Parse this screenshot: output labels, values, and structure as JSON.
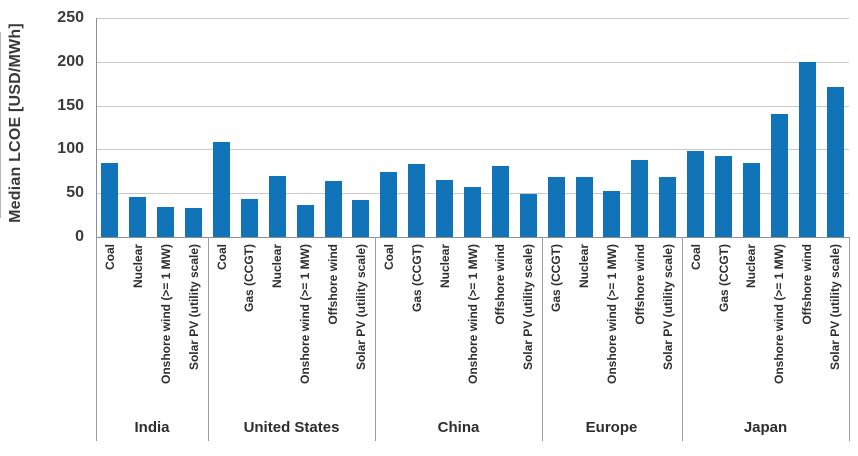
{
  "chart_data": {
    "type": "bar",
    "title": "",
    "ylabel": "Median LCOE [USD/MWh]",
    "xlabel": "",
    "ylim": [
      0,
      250
    ],
    "yticks": [
      0,
      50,
      100,
      150,
      200,
      250
    ],
    "grid": true,
    "legend_position": "none",
    "colors": {
      "bar": "#1173b8",
      "gridline": "#c9c9c9",
      "axis": "#8f8f8f",
      "divider": "#9e9e9e",
      "text": "#3a3a3a"
    },
    "groups": [
      {
        "label": "India",
        "bars": [
          {
            "category": "Coal",
            "value": 85
          },
          {
            "category": "Nuclear",
            "value": 46
          },
          {
            "category": "Onshore wind (>= 1 MW)",
            "value": 34
          },
          {
            "category": "Solar PV (utility scale)",
            "value": 33
          }
        ]
      },
      {
        "label": "United States",
        "bars": [
          {
            "category": "Coal",
            "value": 108
          },
          {
            "category": "Gas (CCGT)",
            "value": 43
          },
          {
            "category": "Nuclear",
            "value": 70
          },
          {
            "category": "Onshore wind (>= 1 MW)",
            "value": 37
          },
          {
            "category": "Offshore wind",
            "value": 64
          },
          {
            "category": "Solar PV (utility scale)",
            "value": 42
          }
        ]
      },
      {
        "label": "China",
        "bars": [
          {
            "category": "Coal",
            "value": 74
          },
          {
            "category": "Gas (CCGT)",
            "value": 83
          },
          {
            "category": "Nuclear",
            "value": 65
          },
          {
            "category": "Onshore wind (>= 1 MW)",
            "value": 57
          },
          {
            "category": "Offshore wind",
            "value": 81
          },
          {
            "category": "Solar PV (utility scale)",
            "value": 49
          }
        ]
      },
      {
        "label": "Europe",
        "bars": [
          {
            "category": "Gas (CCGT)",
            "value": 69
          },
          {
            "category": "Nuclear",
            "value": 69
          },
          {
            "category": "Onshore wind (>= 1 MW)",
            "value": 52
          },
          {
            "category": "Offshore wind",
            "value": 88
          },
          {
            "category": "Solar PV (utility scale)",
            "value": 68
          }
        ]
      },
      {
        "label": "Japan",
        "bars": [
          {
            "category": "Coal",
            "value": 98
          },
          {
            "category": "Gas (CCGT)",
            "value": 92
          },
          {
            "category": "Nuclear",
            "value": 85
          },
          {
            "category": "Onshore wind (>= 1 MW)",
            "value": 140
          },
          {
            "category": "Offshore wind",
            "value": 200
          },
          {
            "category": "Solar PV (utility scale)",
            "value": 171
          }
        ]
      }
    ]
  }
}
